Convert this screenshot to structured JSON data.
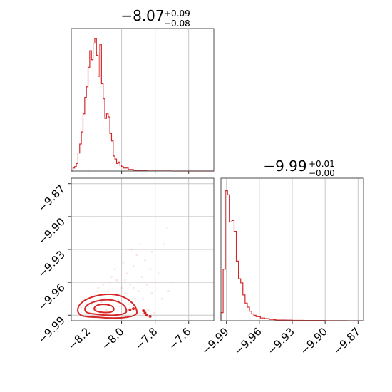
{
  "colors": {
    "series": "#d62728",
    "contour_fill_outer": "#f7c6c6",
    "contour_fill_mid": "#ee9a9a",
    "contour_fill_inner": "#e05a5a",
    "points": "#f3a3a3"
  },
  "chart_data": [
    {
      "type": "histogram",
      "panel": "top-left",
      "title": {
        "value": "−8.07",
        "sup": "+0.09",
        "sub": "−0.08"
      },
      "xlim": [
        -8.3,
        -7.45
      ],
      "xticks": [
        -8.2,
        -8.0,
        -7.8,
        -7.6
      ],
      "bins": [
        -8.3,
        -8.29,
        -8.28,
        -8.27,
        -8.26,
        -8.25,
        -8.24,
        -8.23,
        -8.22,
        -8.21,
        -8.2,
        -8.19,
        -8.18,
        -8.17,
        -8.16,
        -8.15,
        -8.14,
        -8.13,
        -8.12,
        -8.11,
        -8.1,
        -8.09,
        -8.08,
        -8.07,
        -8.06,
        -8.05,
        -8.04,
        -8.03,
        -8.02,
        -8.01,
        -8.0,
        -7.99,
        -7.98,
        -7.97,
        -7.96,
        -7.95,
        -7.94,
        -7.93,
        -7.92,
        -7.91,
        -7.9,
        -7.89,
        -7.88,
        -7.87,
        -7.86,
        -7.85,
        -7.84,
        -7.83,
        -7.82,
        -7.81,
        -7.8,
        -7.75,
        -7.7,
        -7.65,
        -7.6,
        -7.55,
        -7.5,
        -7.45
      ],
      "counts": [
        0,
        2,
        3,
        5,
        12,
        18,
        26,
        38,
        49,
        56,
        69,
        80,
        74,
        85,
        88,
        77,
        63,
        84,
        58,
        48,
        35,
        38,
        36,
        25,
        20,
        10,
        8,
        5,
        6,
        4,
        3,
        2,
        2,
        2,
        1,
        1,
        1,
        0.5,
        0.5,
        0.5,
        0.3,
        0.3,
        0.2,
        0.2,
        0.2,
        0.1,
        0.1,
        0.1,
        0.1,
        0.1,
        0.1,
        0.1,
        0,
        0,
        0,
        0,
        0
      ],
      "ymax": 90
    },
    {
      "type": "contour-scatter",
      "panel": "bottom-left",
      "xlim": [
        -8.3,
        -7.45
      ],
      "ylim": [
        -9.995,
        -9.865
      ],
      "xticks": [
        -8.2,
        -8.0,
        -7.8,
        -7.6
      ],
      "yticks": [
        -9.99,
        -9.96,
        -9.93,
        -9.9,
        -9.87
      ],
      "points": [
        [
          -8.15,
          -9.984
        ],
        [
          -8.12,
          -9.978
        ],
        [
          -8.1,
          -9.975
        ],
        [
          -8.05,
          -9.972
        ],
        [
          -8.02,
          -9.976
        ],
        [
          -8.08,
          -9.968
        ],
        [
          -8.18,
          -9.98
        ],
        [
          -8.2,
          -9.982
        ],
        [
          -8.0,
          -9.965
        ],
        [
          -7.98,
          -9.97
        ],
        [
          -7.95,
          -9.962
        ],
        [
          -8.03,
          -9.958
        ],
        [
          -7.92,
          -9.975
        ],
        [
          -7.9,
          -9.968
        ],
        [
          -8.06,
          -9.955
        ],
        [
          -8.11,
          -9.962
        ],
        [
          -7.97,
          -9.952
        ],
        [
          -7.93,
          -9.945
        ],
        [
          -7.88,
          -9.955
        ],
        [
          -7.85,
          -9.962
        ],
        [
          -7.83,
          -9.948
        ],
        [
          -8.09,
          -9.985
        ],
        [
          -8.13,
          -9.988
        ],
        [
          -8.01,
          -9.982
        ],
        [
          -7.96,
          -9.98
        ],
        [
          -7.87,
          -9.975
        ],
        [
          -7.82,
          -9.97
        ],
        [
          -7.8,
          -9.96
        ],
        [
          -7.78,
          -9.952
        ],
        [
          -7.75,
          -9.925
        ],
        [
          -7.73,
          -9.91
        ],
        [
          -7.82,
          -9.932
        ],
        [
          -7.86,
          -9.94
        ],
        [
          -7.99,
          -9.942
        ],
        [
          -8.04,
          -9.948
        ],
        [
          -7.94,
          -9.93
        ],
        [
          -7.91,
          -9.935
        ],
        [
          -7.89,
          -9.925
        ],
        [
          -8.16,
          -9.972
        ],
        [
          -8.22,
          -9.976
        ],
        [
          -8.24,
          -9.983
        ],
        [
          -7.76,
          -9.975
        ],
        [
          -7.72,
          -9.968
        ],
        [
          -7.7,
          -9.96
        ],
        [
          -7.84,
          -9.985
        ],
        [
          -7.81,
          -9.988
        ],
        [
          -8.07,
          -9.96
        ],
        [
          -7.98,
          -9.958
        ],
        [
          -8.14,
          -9.965
        ],
        [
          -7.93,
          -9.965
        ]
      ],
      "contour_levels": [
        "outer",
        "mid",
        "inner"
      ],
      "dense_points": [
        [
          -7.86,
          -9.988
        ],
        [
          -7.85,
          -9.99
        ],
        [
          -7.87,
          -9.986
        ],
        [
          -7.93,
          -9.984
        ],
        [
          -7.95,
          -9.985
        ],
        [
          -7.83,
          -9.991
        ]
      ]
    },
    {
      "type": "histogram",
      "panel": "bottom-right",
      "title": {
        "value": "−9.99",
        "sup": "+0.01",
        "sub": "−0.00"
      },
      "xlim": [
        -9.995,
        -9.865
      ],
      "xticks": [
        -9.99,
        -9.96,
        -9.93,
        -9.9,
        -9.87
      ],
      "bins": [
        -9.995,
        -9.993,
        -9.991,
        -9.989,
        -9.987,
        -9.985,
        -9.983,
        -9.981,
        -9.979,
        -9.977,
        -9.975,
        -9.973,
        -9.971,
        -9.969,
        -9.967,
        -9.965,
        -9.963,
        -9.961,
        -9.959,
        -9.957,
        -9.955,
        -9.953,
        -9.951,
        -9.949,
        -9.947,
        -9.945,
        -9.94,
        -9.935,
        -9.93,
        -9.925,
        -9.92,
        -9.9,
        -9.88,
        -9.865
      ],
      "counts": [
        6,
        38,
        96,
        93,
        73,
        74,
        66,
        44,
        31,
        28,
        19,
        13,
        10,
        7,
        5,
        4,
        3,
        3,
        2,
        2,
        1.5,
        1.5,
        1,
        1,
        0.8,
        0.5,
        0.5,
        0.4,
        0.3,
        0.3,
        0.2,
        0.1,
        0
      ],
      "ymax": 100
    }
  ]
}
